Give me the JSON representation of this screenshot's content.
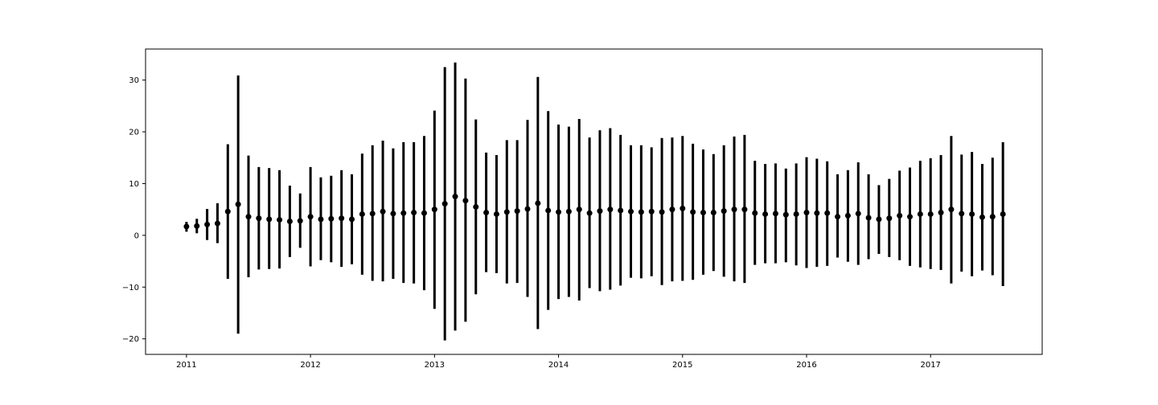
{
  "chart_data": {
    "type": "errorbar",
    "title": "",
    "xlabel": "",
    "ylabel": "",
    "xlim": [
      2010.67,
      2017.9
    ],
    "ylim": [
      -23,
      36
    ],
    "grid": false,
    "legend": false,
    "x_ticks": [
      {
        "value": 2011,
        "label": "2011"
      },
      {
        "value": 2012,
        "label": "2012"
      },
      {
        "value": 2013,
        "label": "2013"
      },
      {
        "value": 2014,
        "label": "2014"
      },
      {
        "value": 2015,
        "label": "2015"
      },
      {
        "value": 2016,
        "label": "2016"
      },
      {
        "value": 2017,
        "label": "2017"
      }
    ],
    "y_ticks": [
      {
        "value": 30,
        "label": "30"
      },
      {
        "value": 20,
        "label": "20"
      },
      {
        "value": 10,
        "label": "10"
      },
      {
        "value": 0,
        "label": "0"
      },
      {
        "value": -10,
        "label": "−10"
      },
      {
        "value": -20,
        "label": "−20"
      }
    ],
    "colors": {
      "marker": "#000000",
      "errorbar": "#000000",
      "axes": "#000000"
    },
    "series": [
      {
        "x": [
          "2011-01",
          "2011-02",
          "2011-03",
          "2011-04",
          "2011-05",
          "2011-06",
          "2011-07",
          "2011-08",
          "2011-09",
          "2011-10",
          "2011-11",
          "2011-12",
          "2012-01",
          "2012-02",
          "2012-03",
          "2012-04",
          "2012-05",
          "2012-06",
          "2012-07",
          "2012-08",
          "2012-09",
          "2012-10",
          "2012-11",
          "2012-12",
          "2013-01",
          "2013-02",
          "2013-03",
          "2013-04",
          "2013-05",
          "2013-06",
          "2013-07",
          "2013-08",
          "2013-09",
          "2013-10",
          "2013-11",
          "2013-12",
          "2014-01",
          "2014-02",
          "2014-03",
          "2014-04",
          "2014-05",
          "2014-06",
          "2014-07",
          "2014-08",
          "2014-09",
          "2014-10",
          "2014-11",
          "2014-12",
          "2015-01",
          "2015-02",
          "2015-03",
          "2015-04",
          "2015-05",
          "2015-06",
          "2015-07",
          "2015-08",
          "2015-09",
          "2015-10",
          "2015-11",
          "2015-12",
          "2016-01",
          "2016-02",
          "2016-03",
          "2016-04",
          "2016-05",
          "2016-06",
          "2016-07",
          "2016-08",
          "2016-09",
          "2016-10",
          "2016-11",
          "2016-12",
          "2017-01",
          "2017-02",
          "2017-03",
          "2017-04",
          "2017-05",
          "2017-06",
          "2017-07",
          "2017-08"
        ],
        "mean": [
          1.7,
          1.8,
          2.1,
          2.3,
          4.6,
          6.0,
          3.6,
          3.3,
          3.1,
          3.0,
          2.7,
          2.8,
          3.6,
          3.1,
          3.2,
          3.3,
          3.1,
          4.1,
          4.2,
          4.6,
          4.2,
          4.3,
          4.4,
          4.3,
          5.0,
          6.1,
          7.5,
          6.7,
          5.5,
          4.4,
          4.1,
          4.5,
          4.7,
          5.1,
          6.2,
          4.8,
          4.5,
          4.6,
          5.0,
          4.3,
          4.7,
          5.0,
          4.8,
          4.6,
          4.5,
          4.6,
          4.5,
          5.0,
          5.2,
          4.5,
          4.4,
          4.4,
          4.7,
          5.0,
          5.0,
          4.3,
          4.1,
          4.2,
          4.0,
          4.1,
          4.4,
          4.3,
          4.3,
          3.6,
          3.8,
          4.2,
          3.4,
          3.1,
          3.3,
          3.8,
          3.6,
          4.1,
          4.1,
          4.4,
          5.0,
          4.2,
          4.1,
          3.5,
          3.6,
          4.1
        ],
        "low": [
          0.7,
          0.4,
          -0.9,
          -1.5,
          -8.4,
          -19.0,
          -8.1,
          -6.6,
          -6.5,
          -6.4,
          -4.2,
          -2.4,
          -6.0,
          -4.8,
          -5.2,
          -6.1,
          -5.6,
          -7.6,
          -8.8,
          -8.9,
          -8.4,
          -9.2,
          -9.3,
          -10.6,
          -14.2,
          -20.3,
          -18.4,
          -16.7,
          -11.4,
          -7.1,
          -7.3,
          -9.3,
          -9.2,
          -11.9,
          -18.1,
          -14.4,
          -12.3,
          -11.9,
          -12.6,
          -10.2,
          -10.8,
          -10.5,
          -9.7,
          -8.2,
          -8.3,
          -7.9,
          -9.6,
          -8.9,
          -8.8,
          -8.6,
          -7.6,
          -6.9,
          -8.0,
          -8.9,
          -9.2,
          -5.7,
          -5.4,
          -5.4,
          -5.2,
          -5.8,
          -6.3,
          -6.1,
          -5.9,
          -4.3,
          -5.1,
          -5.7,
          -4.6,
          -3.6,
          -4.2,
          -4.8,
          -5.9,
          -6.2,
          -6.5,
          -6.7,
          -9.3,
          -7.0,
          -7.9,
          -6.8,
          -7.7,
          -9.8
        ],
        "high": [
          2.6,
          3.2,
          5.1,
          6.2,
          17.6,
          30.9,
          15.4,
          13.2,
          13.0,
          12.6,
          9.6,
          8.1,
          13.2,
          11.2,
          11.5,
          12.6,
          11.8,
          15.8,
          17.4,
          18.3,
          16.8,
          18.0,
          18.0,
          19.2,
          24.1,
          32.5,
          33.4,
          30.3,
          22.4,
          16.0,
          15.5,
          18.4,
          18.4,
          22.3,
          30.6,
          24.0,
          21.4,
          21.0,
          22.5,
          18.9,
          20.3,
          20.7,
          19.4,
          17.4,
          17.4,
          17.0,
          18.8,
          18.9,
          19.2,
          17.7,
          16.6,
          15.7,
          17.4,
          19.1,
          19.4,
          14.4,
          13.8,
          13.9,
          12.9,
          13.9,
          15.1,
          14.8,
          14.3,
          11.8,
          12.6,
          14.1,
          11.8,
          9.7,
          10.9,
          12.5,
          13.1,
          14.4,
          14.9,
          15.5,
          19.2,
          15.6,
          16.1,
          13.8,
          15.0,
          18.0
        ]
      }
    ]
  }
}
